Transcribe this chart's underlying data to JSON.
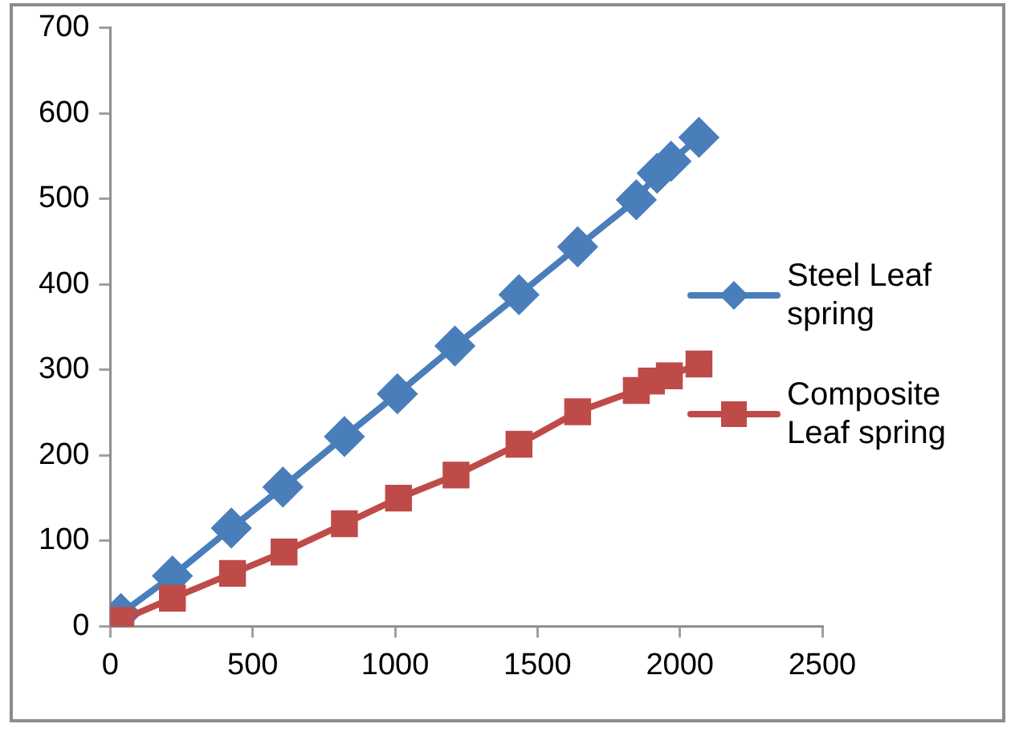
{
  "chart_data": {
    "type": "line",
    "grid": false,
    "legend": "right",
    "xlim": [
      0,
      2500
    ],
    "xticks": [
      0,
      500,
      1000,
      1500,
      2000,
      2500
    ],
    "ylim": [
      0,
      700
    ],
    "yticks": [
      0,
      100,
      200,
      300,
      400,
      500,
      600,
      700
    ],
    "series": [
      {
        "name": "Steel Leaf spring",
        "color": "#4a7ebb",
        "marker": "diamond",
        "x": [
          37,
          218,
          425,
          606,
          822,
          1008,
          1210,
          1435,
          1641,
          1847,
          1920,
          1969,
          2067
        ],
        "values": [
          15,
          59,
          115,
          163,
          222,
          272,
          328,
          388,
          444,
          499,
          530,
          544,
          572
        ]
      },
      {
        "name": "Composite Leaf spring",
        "color": "#be4b48",
        "marker": "square",
        "x": [
          37,
          218,
          429,
          610,
          822,
          1012,
          1214,
          1435,
          1641,
          1847,
          1900,
          1963,
          2067
        ],
        "values": [
          7,
          33,
          62,
          87,
          120,
          150,
          177,
          213,
          251,
          276,
          287,
          293,
          307
        ]
      }
    ]
  }
}
